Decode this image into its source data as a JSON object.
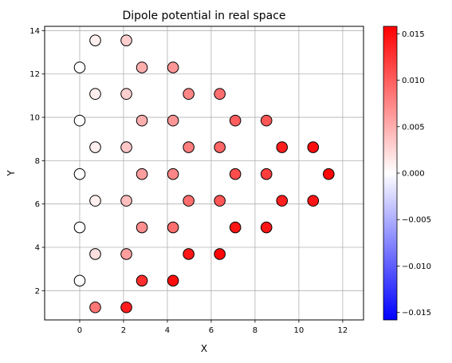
{
  "chart_data": {
    "type": "scatter",
    "title": "Dipole potential in real space",
    "xlabel": "X",
    "ylabel": "Y",
    "xlim": [
      -1.6,
      12.95
    ],
    "ylim": [
      0.65,
      14.2
    ],
    "x_ticks": [
      0,
      2,
      4,
      6,
      8,
      10,
      12
    ],
    "y_ticks": [
      2,
      4,
      6,
      8,
      10,
      12,
      14
    ],
    "grid": true,
    "colormap": {
      "name": "bwr",
      "low": "#0000ff",
      "mid": "#ffffff",
      "high": "#ff0000"
    },
    "colorbar": {
      "range": [
        -0.0158,
        0.0158
      ],
      "ticks": [
        -0.015,
        -0.01,
        -0.005,
        0.0,
        0.005,
        0.01,
        0.015
      ],
      "tick_labels": [
        "−0.015",
        "−0.010",
        "−0.005",
        "0.000",
        "0.005",
        "0.010",
        "0.015"
      ]
    },
    "marker": {
      "edge_color": "#000000"
    },
    "points": [
      {
        "x": 0.0,
        "y": 12.3,
        "value": 0.0
      },
      {
        "x": 0.0,
        "y": 9.85,
        "value": 0.0
      },
      {
        "x": 0.0,
        "y": 7.38,
        "value": 0.0
      },
      {
        "x": 0.0,
        "y": 4.92,
        "value": 0.0
      },
      {
        "x": 0.0,
        "y": 2.46,
        "value": 0.0
      },
      {
        "x": 0.71,
        "y": 13.55,
        "value": 0.001
      },
      {
        "x": 0.71,
        "y": 11.08,
        "value": 0.001
      },
      {
        "x": 0.71,
        "y": 8.62,
        "value": 0.001
      },
      {
        "x": 0.71,
        "y": 6.15,
        "value": 0.001
      },
      {
        "x": 0.71,
        "y": 3.69,
        "value": 0.002
      },
      {
        "x": 0.71,
        "y": 1.23,
        "value": 0.0085
      },
      {
        "x": 2.13,
        "y": 13.55,
        "value": 0.003
      },
      {
        "x": 2.13,
        "y": 11.08,
        "value": 0.003
      },
      {
        "x": 2.13,
        "y": 8.62,
        "value": 0.0035
      },
      {
        "x": 2.13,
        "y": 6.15,
        "value": 0.004
      },
      {
        "x": 2.13,
        "y": 3.69,
        "value": 0.006
      },
      {
        "x": 2.13,
        "y": 1.23,
        "value": 0.014
      },
      {
        "x": 2.84,
        "y": 12.3,
        "value": 0.005
      },
      {
        "x": 2.84,
        "y": 9.85,
        "value": 0.005
      },
      {
        "x": 2.84,
        "y": 7.38,
        "value": 0.006
      },
      {
        "x": 2.84,
        "y": 4.92,
        "value": 0.007
      },
      {
        "x": 2.84,
        "y": 2.46,
        "value": 0.013
      },
      {
        "x": 4.26,
        "y": 12.3,
        "value": 0.0065
      },
      {
        "x": 4.26,
        "y": 9.85,
        "value": 0.0065
      },
      {
        "x": 4.26,
        "y": 7.38,
        "value": 0.0075
      },
      {
        "x": 4.26,
        "y": 4.92,
        "value": 0.009
      },
      {
        "x": 4.26,
        "y": 2.46,
        "value": 0.015
      },
      {
        "x": 4.97,
        "y": 11.08,
        "value": 0.0075
      },
      {
        "x": 4.97,
        "y": 8.62,
        "value": 0.008
      },
      {
        "x": 4.97,
        "y": 6.15,
        "value": 0.009
      },
      {
        "x": 4.97,
        "y": 3.69,
        "value": 0.0145
      },
      {
        "x": 6.39,
        "y": 11.08,
        "value": 0.009
      },
      {
        "x": 6.39,
        "y": 8.62,
        "value": 0.0095
      },
      {
        "x": 6.39,
        "y": 6.15,
        "value": 0.0105
      },
      {
        "x": 6.39,
        "y": 3.69,
        "value": 0.0155
      },
      {
        "x": 7.1,
        "y": 9.85,
        "value": 0.01
      },
      {
        "x": 7.1,
        "y": 7.38,
        "value": 0.011
      },
      {
        "x": 7.1,
        "y": 4.92,
        "value": 0.0145
      },
      {
        "x": 8.52,
        "y": 9.85,
        "value": 0.0105
      },
      {
        "x": 8.52,
        "y": 7.38,
        "value": 0.012
      },
      {
        "x": 8.52,
        "y": 4.92,
        "value": 0.0145
      },
      {
        "x": 9.23,
        "y": 8.62,
        "value": 0.014
      },
      {
        "x": 9.23,
        "y": 6.15,
        "value": 0.014
      },
      {
        "x": 10.65,
        "y": 8.62,
        "value": 0.015
      },
      {
        "x": 10.65,
        "y": 6.15,
        "value": 0.0145
      },
      {
        "x": 11.36,
        "y": 7.38,
        "value": 0.0155
      }
    ]
  }
}
